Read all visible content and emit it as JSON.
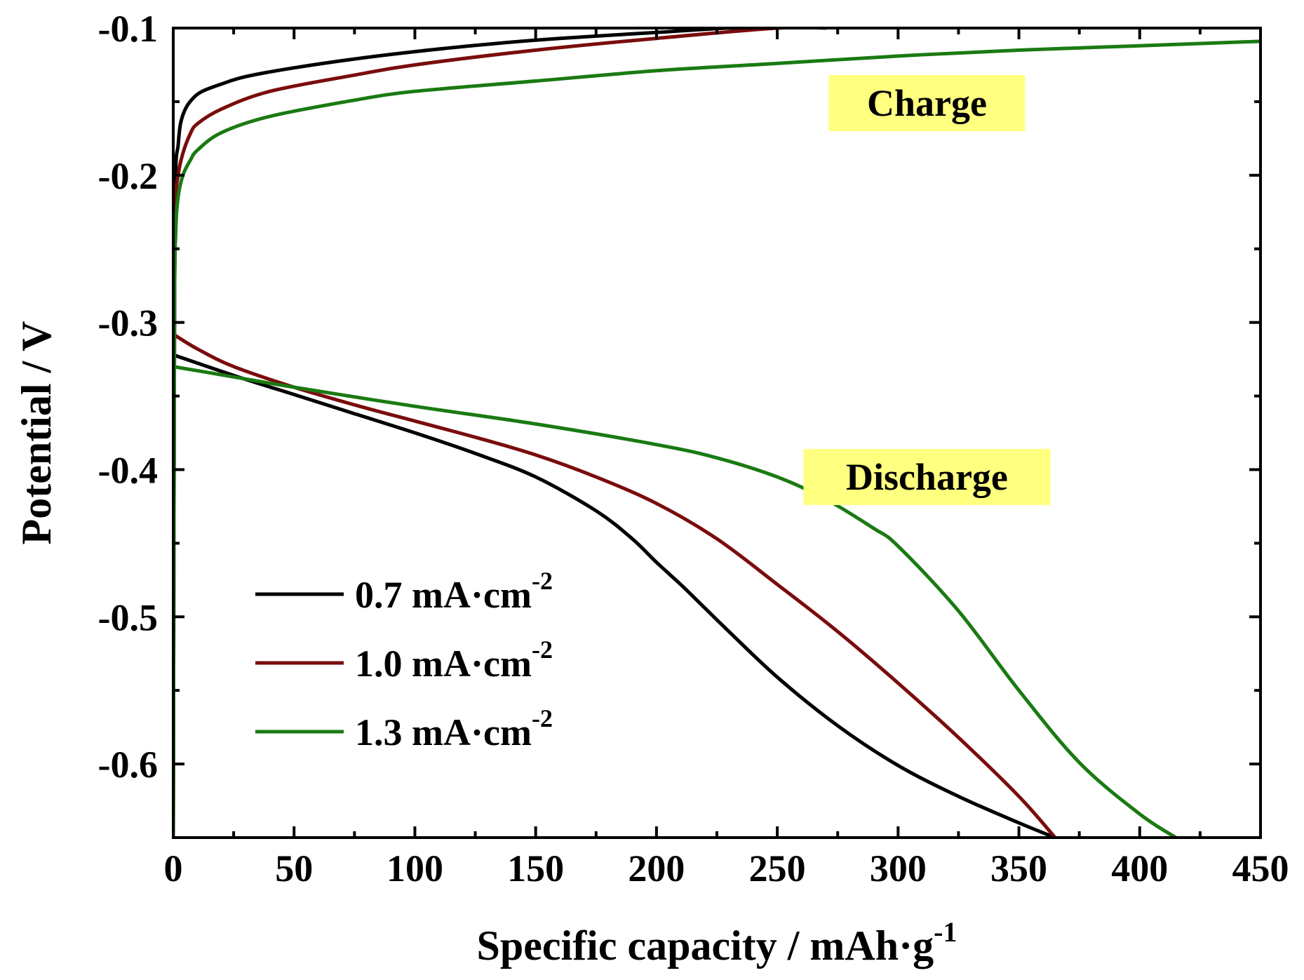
{
  "chart_data": {
    "type": "line",
    "title": "",
    "xlabel": "Specific capacity / mAh·g",
    "xlabel_sup": "-1",
    "ylabel": "Potential / V",
    "xlim": [
      0,
      450
    ],
    "ylim": [
      -0.65,
      -0.1
    ],
    "x_ticks": [
      0,
      50,
      100,
      150,
      200,
      250,
      300,
      350,
      400,
      450
    ],
    "x_tick_labels": [
      "0",
      "50",
      "100",
      "150",
      "200",
      "250",
      "300",
      "350",
      "400",
      "450"
    ],
    "y_ticks": [
      -0.1,
      -0.2,
      -0.3,
      -0.4,
      -0.5,
      -0.6
    ],
    "y_tick_labels": [
      "-0.1",
      "-0.2",
      "-0.3",
      "-0.4",
      "-0.5",
      "-0.6"
    ],
    "grid": false,
    "legend_position": "bottom-left",
    "annotations": [
      {
        "name": "charge-label",
        "text": "Charge",
        "x": 280,
        "y": -0.151,
        "box_color": "#ffff80"
      },
      {
        "name": "discharge-label",
        "text": "Discharge",
        "x": 280,
        "y": -0.405,
        "box_color": "#ffff80"
      }
    ],
    "series": [
      {
        "name": "0.7 mA·cm",
        "sup": "-2",
        "color": "#000000",
        "charge": {
          "x": [
            0,
            0.5,
            1,
            2,
            3,
            5,
            8,
            12,
            20,
            30,
            50,
            75,
            100,
            130,
            160,
            200,
            230,
            250
          ],
          "y": [
            -0.65,
            -0.3,
            -0.2,
            -0.18,
            -0.165,
            -0.155,
            -0.148,
            -0.143,
            -0.138,
            -0.133,
            -0.127,
            -0.121,
            -0.116,
            -0.111,
            -0.107,
            -0.103,
            -0.1,
            -0.1
          ]
        },
        "discharge": {
          "x": [
            0,
            25,
            50,
            75,
            100,
            125,
            150,
            175,
            190,
            200,
            210,
            220,
            230,
            250,
            275,
            300,
            325,
            350,
            365
          ],
          "y": [
            -0.322,
            -0.336,
            -0.349,
            -0.362,
            -0.375,
            -0.389,
            -0.405,
            -0.428,
            -0.447,
            -0.463,
            -0.478,
            -0.494,
            -0.51,
            -0.541,
            -0.574,
            -0.601,
            -0.622,
            -0.64,
            -0.65
          ]
        }
      },
      {
        "name": "1.0 mA·cm",
        "sup": "-2",
        "color": "#7a0c0c",
        "charge": {
          "x": [
            0,
            0.5,
            1,
            2,
            4,
            7,
            10,
            20,
            40,
            75,
            100,
            150,
            200,
            250,
            270
          ],
          "y": [
            -0.65,
            -0.3,
            -0.22,
            -0.2,
            -0.185,
            -0.172,
            -0.165,
            -0.155,
            -0.143,
            -0.132,
            -0.125,
            -0.115,
            -0.107,
            -0.1,
            -0.1
          ]
        },
        "discharge": {
          "x": [
            0,
            10,
            25,
            50,
            75,
            100,
            125,
            150,
            175,
            200,
            225,
            250,
            275,
            300,
            325,
            350,
            365
          ],
          "y": [
            -0.308,
            -0.318,
            -0.33,
            -0.344,
            -0.356,
            -0.367,
            -0.378,
            -0.39,
            -0.405,
            -0.423,
            -0.447,
            -0.478,
            -0.51,
            -0.545,
            -0.582,
            -0.622,
            -0.65
          ]
        }
      },
      {
        "name": "1.3 mA·cm",
        "sup": "-2",
        "color": "#1a7a12",
        "charge": {
          "x": [
            0,
            0.5,
            1,
            2,
            4,
            7,
            10,
            20,
            40,
            75,
            100,
            150,
            200,
            250,
            300,
            350,
            400,
            450
          ],
          "y": [
            -0.65,
            -0.3,
            -0.24,
            -0.215,
            -0.2,
            -0.19,
            -0.183,
            -0.171,
            -0.16,
            -0.149,
            -0.143,
            -0.136,
            -0.129,
            -0.124,
            -0.119,
            -0.115,
            -0.112,
            -0.109
          ]
        },
        "discharge": {
          "x": [
            0,
            25,
            50,
            100,
            150,
            200,
            225,
            250,
            270,
            290,
            300,
            325,
            350,
            375,
            400,
            415
          ],
          "y": [
            -0.33,
            -0.337,
            -0.344,
            -0.357,
            -0.369,
            -0.383,
            -0.392,
            -0.405,
            -0.42,
            -0.44,
            -0.452,
            -0.496,
            -0.55,
            -0.599,
            -0.634,
            -0.65
          ]
        }
      }
    ]
  }
}
